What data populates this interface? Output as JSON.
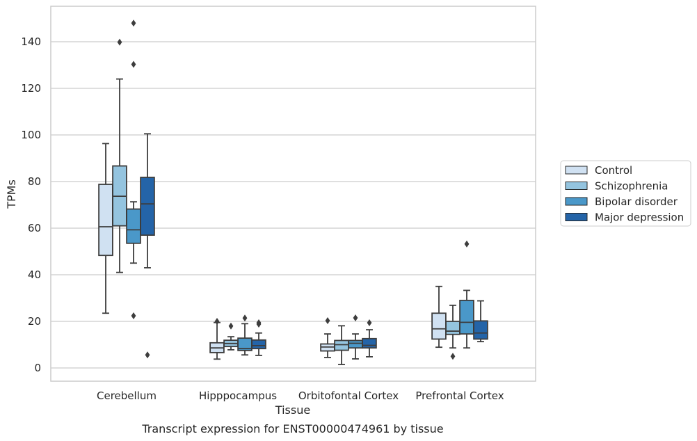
{
  "chart_data": {
    "type": "box",
    "title": "",
    "caption": "Transcript expression for ENST00000474961 by tissue",
    "xlabel": "Tissue",
    "ylabel": "TPMs",
    "ylim": [
      -5,
      156
    ],
    "yticks": [
      0,
      20,
      40,
      60,
      80,
      100,
      120,
      140
    ],
    "grid": "horizontal",
    "legend_position": "right",
    "categories": [
      "Cerebellum",
      "Hipppocampus",
      "Orbitofontal Cortex",
      "Prefrontal Cortex"
    ],
    "series": [
      {
        "name": "Control",
        "color": "#d0e1f2",
        "boxes": [
          {
            "whislo": 23.5,
            "q1": 48.3,
            "med": 60.6,
            "q3": 78.8,
            "whishi": 96.3,
            "fliers": []
          },
          {
            "whislo": 3.8,
            "q1": 6.6,
            "med": 8.6,
            "q3": 10.8,
            "whishi": 19.5,
            "fliers": [
              20
            ]
          },
          {
            "whislo": 4.5,
            "q1": 7.3,
            "med": 9.0,
            "q3": 10.3,
            "whishi": 14.6,
            "fliers": [
              20.3
            ]
          },
          {
            "whislo": 8.9,
            "q1": 12.4,
            "med": 16.8,
            "q3": 23.5,
            "whishi": 35,
            "fliers": []
          }
        ]
      },
      {
        "name": "Schizophrenia",
        "color": "#94c4df",
        "boxes": [
          {
            "whislo": 41,
            "q1": 61,
            "med": 73.7,
            "q3": 86.7,
            "whishi": 124,
            "fliers": [
              139.8
            ]
          },
          {
            "whislo": 7.8,
            "q1": 9.2,
            "med": 10.5,
            "q3": 11.9,
            "whishi": 13.4,
            "fliers": [
              18
            ]
          },
          {
            "whislo": 1.5,
            "q1": 7.6,
            "med": 10.0,
            "q3": 11.8,
            "whishi": 18.1,
            "fliers": []
          },
          {
            "whislo": 8.6,
            "q1": 14.4,
            "med": 15.8,
            "q3": 20.0,
            "whishi": 26.9,
            "fliers": [
              5
            ]
          }
        ]
      },
      {
        "name": "Bipolar disorder",
        "color": "#4a98c9",
        "boxes": [
          {
            "whislo": 45,
            "q1": 53.5,
            "med": 59.3,
            "q3": 68.2,
            "whishi": 71.3,
            "fliers": [
              148,
              130.3,
              22.4
            ]
          },
          {
            "whislo": 5.6,
            "q1": 7.5,
            "med": 8.3,
            "q3": 12.8,
            "whishi": 19,
            "fliers": [
              21.4
            ]
          },
          {
            "whislo": 3.9,
            "q1": 8.6,
            "med": 10.6,
            "q3": 11.8,
            "whishi": 14.6,
            "fliers": [
              21.5
            ]
          },
          {
            "whislo": 8.6,
            "q1": 14.6,
            "med": 19.6,
            "q3": 29.0,
            "whishi": 33.3,
            "fliers": [
              53.2
            ]
          }
        ]
      },
      {
        "name": "Major depression",
        "color": "#2464a8",
        "boxes": [
          {
            "whislo": 43,
            "q1": 57,
            "med": 70.4,
            "q3": 81.8,
            "whishi": 100.5,
            "fliers": [
              5.6
            ]
          },
          {
            "whislo": 5.4,
            "q1": 8.3,
            "med": 9.6,
            "q3": 12.0,
            "whishi": 15,
            "fliers": [
              19.4,
              18.8
            ]
          },
          {
            "whislo": 4.8,
            "q1": 8.6,
            "med": 9.7,
            "q3": 12.6,
            "whishi": 16.4,
            "fliers": [
              19.4
            ]
          },
          {
            "whislo": 11.3,
            "q1": 12.4,
            "med": 15.0,
            "q3": 20.2,
            "whishi": 28.8,
            "fliers": []
          }
        ]
      }
    ]
  }
}
